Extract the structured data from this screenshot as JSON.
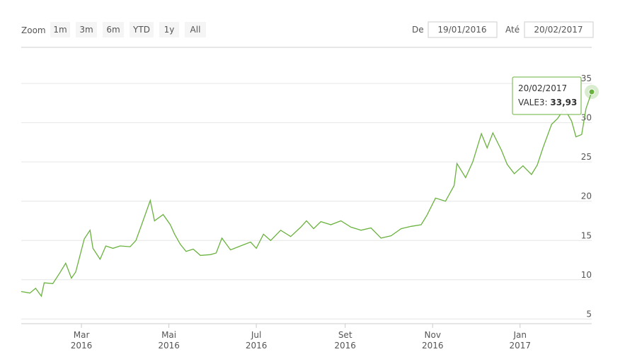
{
  "controls": {
    "zoom_label": "Zoom",
    "buttons": [
      "1m",
      "3m",
      "6m",
      "YTD",
      "1y",
      "All"
    ],
    "from_label": "De",
    "from": "19/01/2016",
    "to_label": "Até",
    "to": "20/02/2017"
  },
  "chart_data": {
    "type": "line",
    "x": [
      "2016-01-19",
      "2016-01-25",
      "2016-01-29",
      "2016-02-02",
      "2016-02-04",
      "2016-02-10",
      "2016-02-15",
      "2016-02-19",
      "2016-02-23",
      "2016-02-26",
      "2016-03-03",
      "2016-03-07",
      "2016-03-09",
      "2016-03-14",
      "2016-03-18",
      "2016-03-23",
      "2016-03-28",
      "2016-04-04",
      "2016-04-08",
      "2016-04-12",
      "2016-04-18",
      "2016-04-21",
      "2016-04-27",
      "2016-05-02",
      "2016-05-05",
      "2016-05-09",
      "2016-05-13",
      "2016-05-18",
      "2016-05-23",
      "2016-05-30",
      "2016-06-03",
      "2016-06-07",
      "2016-06-13",
      "2016-06-20",
      "2016-06-27",
      "2016-07-01",
      "2016-07-06",
      "2016-07-11",
      "2016-07-18",
      "2016-07-25",
      "2016-08-01",
      "2016-08-05",
      "2016-08-10",
      "2016-08-15",
      "2016-08-22",
      "2016-08-29",
      "2016-09-05",
      "2016-09-12",
      "2016-09-19",
      "2016-09-26",
      "2016-10-03",
      "2016-10-10",
      "2016-10-17",
      "2016-10-24",
      "2016-10-28",
      "2016-11-03",
      "2016-11-10",
      "2016-11-16",
      "2016-11-18",
      "2016-11-24",
      "2016-11-29",
      "2016-12-05",
      "2016-12-09",
      "2016-12-13",
      "2016-12-19",
      "2016-12-23",
      "2016-12-28",
      "2017-01-03",
      "2017-01-09",
      "2017-01-13",
      "2017-01-17",
      "2017-01-23",
      "2017-01-27",
      "2017-02-01",
      "2017-02-06",
      "2017-02-09",
      "2017-02-13",
      "2017-02-16",
      "2017-02-20"
    ],
    "series": [
      {
        "name": "VALE3",
        "color": "#6ab23e",
        "values": [
          8.5,
          8.3,
          8.9,
          7.9,
          9.6,
          9.5,
          10.9,
          12.1,
          10.2,
          11.0,
          15.2,
          16.3,
          14.0,
          12.6,
          14.3,
          14.0,
          14.3,
          14.2,
          15.0,
          17.0,
          20.1,
          17.5,
          18.3,
          17.0,
          15.8,
          14.5,
          13.6,
          13.9,
          13.1,
          13.2,
          13.4,
          15.3,
          13.8,
          14.3,
          14.8,
          14.0,
          15.8,
          15.0,
          16.3,
          15.5,
          16.7,
          17.5,
          16.5,
          17.4,
          17.0,
          17.5,
          16.7,
          16.3,
          16.6,
          15.3,
          15.6,
          16.5,
          16.8,
          17.0,
          18.2,
          20.4,
          20.0,
          22.0,
          24.8,
          23.0,
          25.0,
          28.6,
          26.8,
          28.7,
          26.5,
          24.7,
          23.5,
          24.5,
          23.4,
          24.6,
          26.8,
          29.8,
          30.5,
          31.8,
          30.2,
          28.2,
          28.5,
          31.8,
          33.93
        ]
      }
    ],
    "xlim": [
      "2016-01-19",
      "2017-02-20"
    ],
    "xticks": [
      {
        "value": "2016-03-01",
        "label": "Mar",
        "year": "2016"
      },
      {
        "value": "2016-05-01",
        "label": "Mai",
        "year": "2016"
      },
      {
        "value": "2016-07-01",
        "label": "Jul",
        "year": "2016"
      },
      {
        "value": "2016-09-01",
        "label": "Set",
        "year": "2016"
      },
      {
        "value": "2016-11-01",
        "label": "Nov",
        "year": "2016"
      },
      {
        "value": "2017-01-01",
        "label": "Jan",
        "year": "2017"
      }
    ],
    "ylim": [
      4.4,
      39.6
    ],
    "yticks": [
      5,
      10,
      15,
      20,
      25,
      30,
      35
    ],
    "grid": true,
    "tooltip": {
      "date": "20/02/2017",
      "label": "VALE3: ",
      "value": 33.93,
      "value_label": "33,93"
    }
  }
}
